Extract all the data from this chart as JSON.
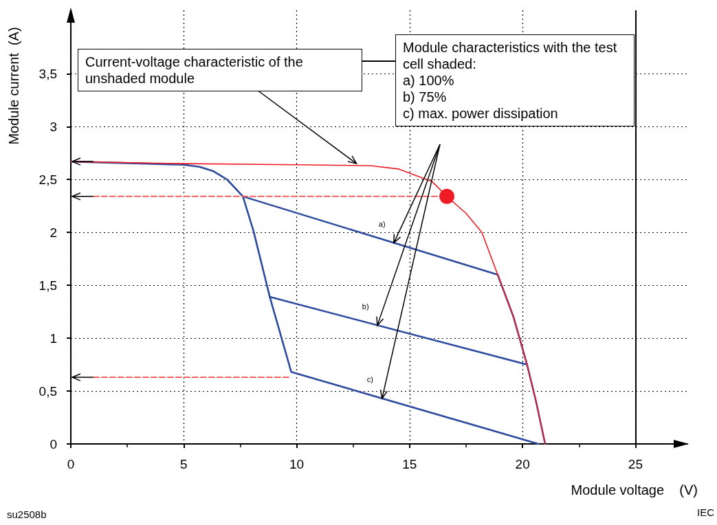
{
  "chart_data": {
    "type": "line",
    "xlabel": "Module voltage    (V)",
    "ylabel": "Module current  (A)",
    "xlim": [
      0,
      27.3
    ],
    "ylim": [
      0,
      4.1
    ],
    "xticks": [
      0,
      5,
      10,
      15,
      20,
      25
    ],
    "yticks": [
      0,
      {
        "value": 0.5,
        "label": "0,5"
      },
      1,
      {
        "value": 1.5,
        "label": "1,5"
      },
      2,
      {
        "value": 2.5,
        "label": "2,5"
      },
      3,
      {
        "value": 3.5,
        "label": "3,5"
      }
    ],
    "grid": true,
    "marker": "none",
    "line_style": "solid",
    "series": [
      {
        "color": "#ee1c25",
        "x": [
          0,
          5,
          10,
          13.3,
          14.5,
          15,
          16,
          16.65,
          17.5,
          18.2,
          18.9,
          19.6,
          20.2,
          20.6,
          21
        ],
        "values": [
          2.67,
          2.65,
          2.64,
          2.63,
          2.6,
          2.56,
          2.48,
          2.34,
          2.18,
          2.0,
          1.6,
          1.2,
          0.75,
          0.4,
          0
        ]
      },
      {
        "color": "#2e4a9e",
        "x": [
          0,
          5,
          5.7,
          6.3,
          6.92,
          7.62,
          8.08,
          8.81,
          9.76,
          20.7
        ],
        "values": [
          2.67,
          2.64,
          2.62,
          2.58,
          2.5,
          2.34,
          2.02,
          1.39,
          0.68,
          0
        ]
      },
      {
        "color": "#2e4a9e",
        "x": [
          7.62,
          18.9
        ],
        "values": [
          2.34,
          1.6
        ]
      },
      {
        "color": "#2e4a9e",
        "x": [
          8.81,
          20.2
        ],
        "values": [
          1.39,
          0.75
        ]
      },
      {
        "color": "#2e4a9e",
        "x": [
          18.9,
          19.6,
          20.2,
          20.6,
          21
        ],
        "values": [
          1.6,
          1.2,
          0.75,
          0.4,
          0
        ]
      },
      {
        "color": "#f06060",
        "line_style": "dashed",
        "x": [
          1,
          16.65
        ],
        "values": [
          2.34,
          2.34
        ]
      },
      {
        "color": "#f06060",
        "line_style": "dashed",
        "x": [
          1,
          9.76
        ],
        "values": [
          0.63,
          0.63
        ]
      },
      {
        "type": "scatter",
        "marker": "circle",
        "color": "#ee1c25",
        "x": [
          16.65
        ],
        "values": [
          2.34
        ]
      }
    ],
    "ref_lines": [
      {
        "axis": "x",
        "value": 25,
        "color": "#000000",
        "line_style": "solid"
      }
    ],
    "annotations": [
      {
        "text": "Current-voltage characteristic of the\nunshaded module",
        "x": 12.65,
        "y": 2.65
      },
      "Module characteristics with the test\ncell shaded:\na) 100%\nb) 75%\nc) max. power dissipation",
      {
        "text": "a)",
        "x": 14.3,
        "y": 1.9
      },
      {
        "text": "b)",
        "x": 13.57,
        "y": 1.12
      },
      {
        "text": "c)",
        "x": 13.78,
        "y": 0.43
      },
      "su2508b",
      "IEC"
    ]
  }
}
